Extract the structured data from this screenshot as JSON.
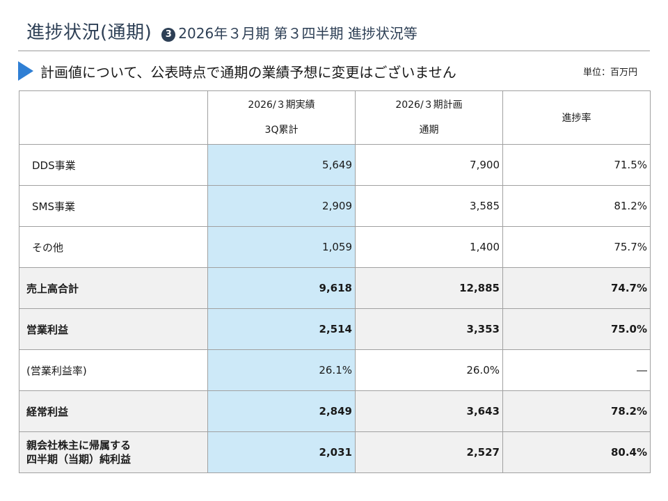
{
  "header": {
    "title": "進捗状況(通期)",
    "badge": "3",
    "subtitle": "2026年３月期 第３四半期 進捗状況等"
  },
  "subheading": {
    "text": "計画値について、公表時点で通期の業績予想に変更はございません",
    "unit": "単位：百万円"
  },
  "table": {
    "columns": [
      {
        "line1": "",
        "line2": ""
      },
      {
        "line1": "2026/３期実績",
        "line2": "3Q累計"
      },
      {
        "line1": "2026/３期計画",
        "line2": "通期"
      },
      {
        "line1": "進捗率",
        "line2": ""
      }
    ],
    "rows": [
      {
        "label": "DDS事業",
        "actual": "5,649",
        "plan": "7,900",
        "progress": "71.5%"
      },
      {
        "label": "SMS事業",
        "actual": "2,909",
        "plan": "3,585",
        "progress": "81.2%"
      },
      {
        "label": "その他",
        "actual": "1,059",
        "plan": "1,400",
        "progress": "75.7%"
      },
      {
        "label": "売上高合計",
        "actual": "9,618",
        "plan": "12,885",
        "progress": "74.7%"
      },
      {
        "label": "営業利益",
        "actual": "2,514",
        "plan": "3,353",
        "progress": "75.0%"
      },
      {
        "label": "(営業利益率)",
        "actual": "26.1%",
        "plan": "26.0%",
        "progress": "―"
      },
      {
        "label": "経常利益",
        "actual": "2,849",
        "plan": "3,643",
        "progress": "78.2%"
      },
      {
        "label_line1": "親会社株主に帰属する",
        "label_line2": "四半期（当期）純利益",
        "actual": "2,031",
        "plan": "2,527",
        "progress": "80.4%"
      }
    ]
  },
  "colors": {
    "title": "#2d3f55",
    "accent_arrow": "#2f7fd4",
    "actual_column_fill": "#cde9f8",
    "total_row_fill": "#f1f1f1"
  }
}
